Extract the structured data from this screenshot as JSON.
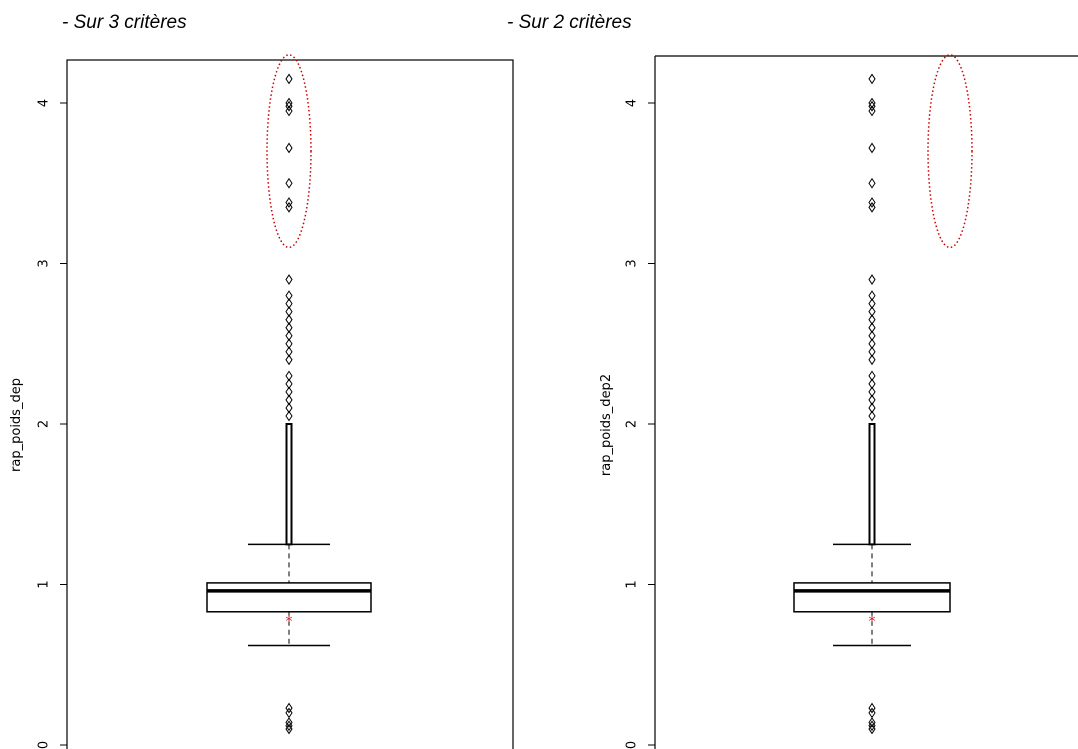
{
  "captions": {
    "left": "- Sur 3 critères",
    "right": "- Sur 2 critères"
  },
  "colors": {
    "box": "#000000",
    "mean_marker": "#e01818",
    "highlight_ellipse": "#cc0000",
    "ylabel_underscore": "#3a8a3a"
  },
  "chart_data": [
    {
      "type": "boxplot",
      "ylabel": "rap_poids_dep",
      "yticks": [
        0,
        1,
        2,
        3,
        4
      ],
      "ylim": [
        0,
        4.3
      ],
      "box": {
        "lower_whisker": 0.62,
        "q1": 0.83,
        "median": 0.96,
        "q3": 1.01,
        "upper_whisker": 1.25,
        "mean": 0.78
      },
      "outliers_low": [
        0.1,
        0.12,
        0.14,
        0.2,
        0.23
      ],
      "outliers_high_dense_range": [
        1.25,
        2.0
      ],
      "outliers_high": [
        2.05,
        2.1,
        2.15,
        2.2,
        2.25,
        2.3,
        2.4,
        2.45,
        2.5,
        2.55,
        2.6,
        2.65,
        2.7,
        2.75,
        2.8,
        2.9,
        3.35,
        3.38,
        3.5,
        3.72,
        3.95,
        3.98,
        4.0,
        4.15
      ],
      "highlight": {
        "shape": "ellipse",
        "style": "dotted",
        "y_range": [
          3.1,
          4.3
        ]
      },
      "frame": "box"
    },
    {
      "type": "boxplot",
      "ylabel": "rap_poids_dep2",
      "yticks": [
        0,
        1,
        2,
        3,
        4
      ],
      "ylim": [
        0,
        4.3
      ],
      "box": {
        "lower_whisker": 0.62,
        "q1": 0.83,
        "median": 0.96,
        "q3": 1.01,
        "upper_whisker": 1.25,
        "mean": 0.78
      },
      "outliers_low": [
        0.1,
        0.12,
        0.14,
        0.2,
        0.23
      ],
      "outliers_high_dense_range": [
        1.25,
        2.0
      ],
      "outliers_high": [
        2.05,
        2.1,
        2.15,
        2.2,
        2.25,
        2.3,
        2.4,
        2.45,
        2.5,
        2.55,
        2.6,
        2.65,
        2.7,
        2.75,
        2.8,
        2.9,
        3.35,
        3.38,
        3.5,
        3.72,
        3.95,
        3.98,
        4.0,
        4.15
      ],
      "highlight": {
        "shape": "ellipse",
        "style": "dotted",
        "y_range": [
          3.1,
          4.3
        ]
      },
      "frame": "top-left"
    }
  ]
}
